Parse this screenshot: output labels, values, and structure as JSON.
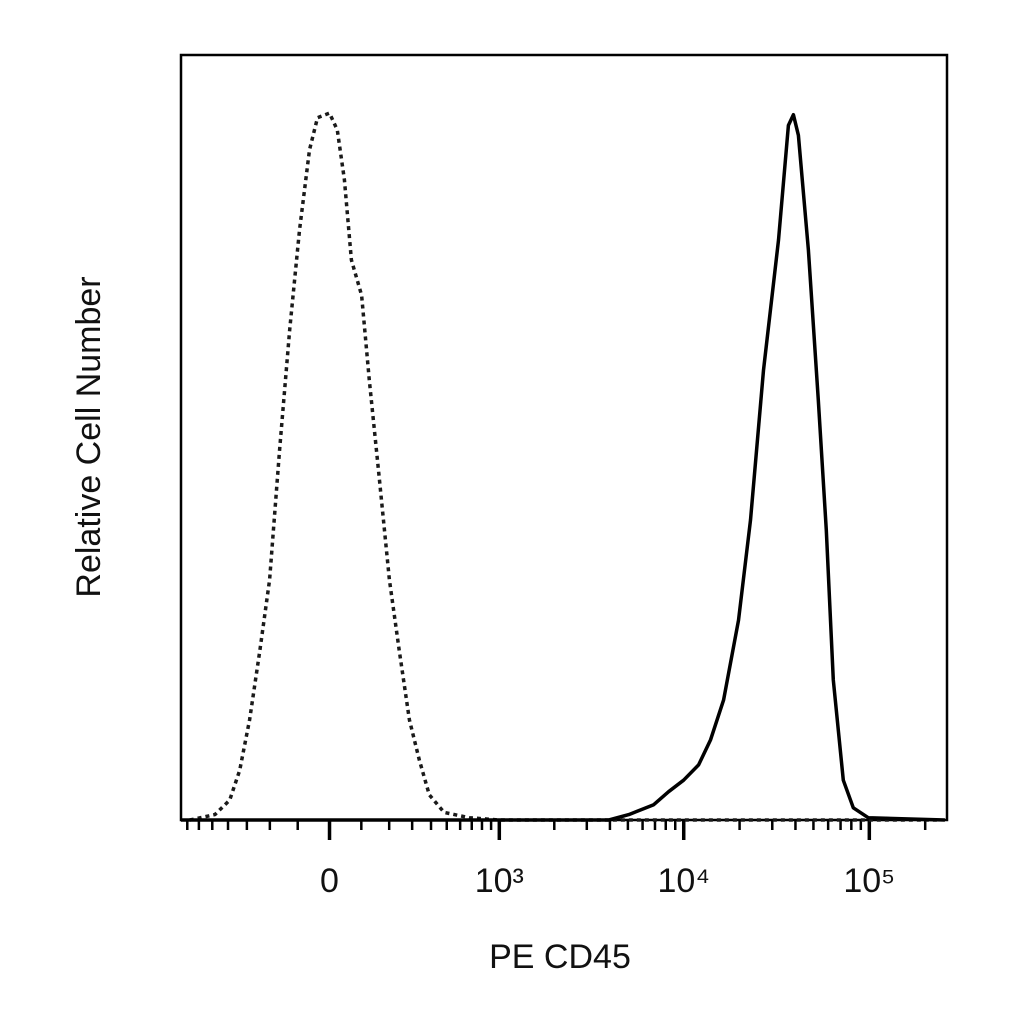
{
  "chart_data": {
    "type": "line",
    "xlabel": "PE CD45",
    "ylabel": "Relative Cell Number",
    "xscale": "biexponential",
    "xlim": [
      -760,
      262144
    ],
    "xticks": [
      0,
      {
        "value": 1000,
        "label": "10³"
      },
      {
        "value": 10000,
        "label": "10⁴"
      },
      {
        "value": 100000,
        "label": "10⁵"
      }
    ],
    "xminorticks": [
      -700,
      -600,
      -500,
      -400,
      -300,
      -200,
      -100,
      100,
      200,
      300,
      400,
      500,
      600,
      700,
      800,
      900,
      2000,
      3000,
      4000,
      5000,
      6000,
      7000,
      8000,
      9000,
      20000,
      30000,
      40000,
      50000,
      60000,
      70000,
      80000,
      90000,
      200000
    ],
    "ylim": [
      0,
      100
    ],
    "series": [
      {
        "style": "dotted",
        "color": "#1a1a1a",
        "x": [
          -677,
          -482,
          -390,
          -336,
          -287,
          -241,
          -201,
          -163,
          -127,
          -94,
          -62,
          -37,
          0,
          24,
          46,
          68,
          101,
          127,
          163,
          201,
          241,
          287,
          336,
          390,
          482,
          677,
          1000,
          3480,
          235000
        ],
        "values": [
          0,
          0.7,
          2.6,
          6.5,
          13.1,
          22.2,
          31.4,
          48.4,
          64.1,
          77.1,
          87.6,
          91.8,
          92.4,
          90.2,
          83.7,
          73.2,
          68.6,
          57.5,
          44.4,
          31.4,
          22.2,
          13.1,
          7.8,
          3.3,
          1.0,
          0.3,
          0,
          0,
          0
        ]
      },
      {
        "style": "solid",
        "color": "#000000",
        "x": [
          -760,
          3947,
          5056,
          6890,
          8290,
          9990,
          12030,
          13960,
          16400,
          19740,
          22900,
          26900,
          32400,
          36650,
          39000,
          41500,
          46960,
          53100,
          58640,
          63970,
          72370,
          82000,
          98680,
          255400
        ],
        "values": [
          0,
          0,
          0.7,
          2.0,
          3.7,
          5.2,
          7.2,
          10.5,
          15.7,
          26.1,
          39.2,
          58.8,
          75.8,
          90.8,
          92.2,
          89.5,
          74.5,
          54.9,
          37.9,
          18.3,
          5.2,
          1.6,
          0.3,
          0
        ]
      }
    ]
  }
}
